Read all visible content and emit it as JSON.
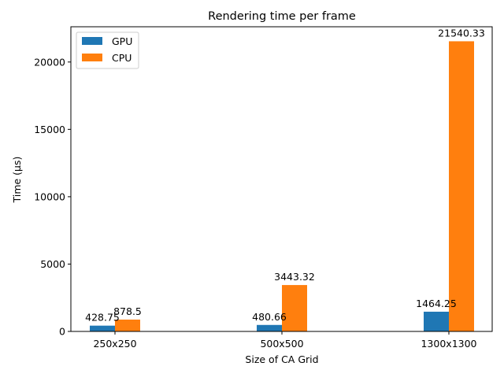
{
  "chart_data": {
    "type": "bar",
    "title": "Rendering time per frame",
    "xlabel": "Size of CA Grid",
    "ylabel": "Time (µs)",
    "categories": [
      "250x250",
      "500x500",
      "1300x1300"
    ],
    "series": [
      {
        "name": "GPU",
        "values": [
          428.75,
          480.66,
          1464.25
        ],
        "color": "#1f77b4"
      },
      {
        "name": "CPU",
        "values": [
          878.5,
          3443.32,
          21540.33
        ],
        "color": "#ff7f0e"
      }
    ],
    "data_labels": [
      [
        "428.75",
        "480.66",
        "1464.25"
      ],
      [
        "878.5",
        "3443.32",
        "21540.33"
      ]
    ],
    "yticks": [
      0,
      5000,
      10000,
      15000,
      20000
    ],
    "ylim": [
      0,
      22617
    ],
    "grid": false,
    "legend_position": "upper left"
  }
}
